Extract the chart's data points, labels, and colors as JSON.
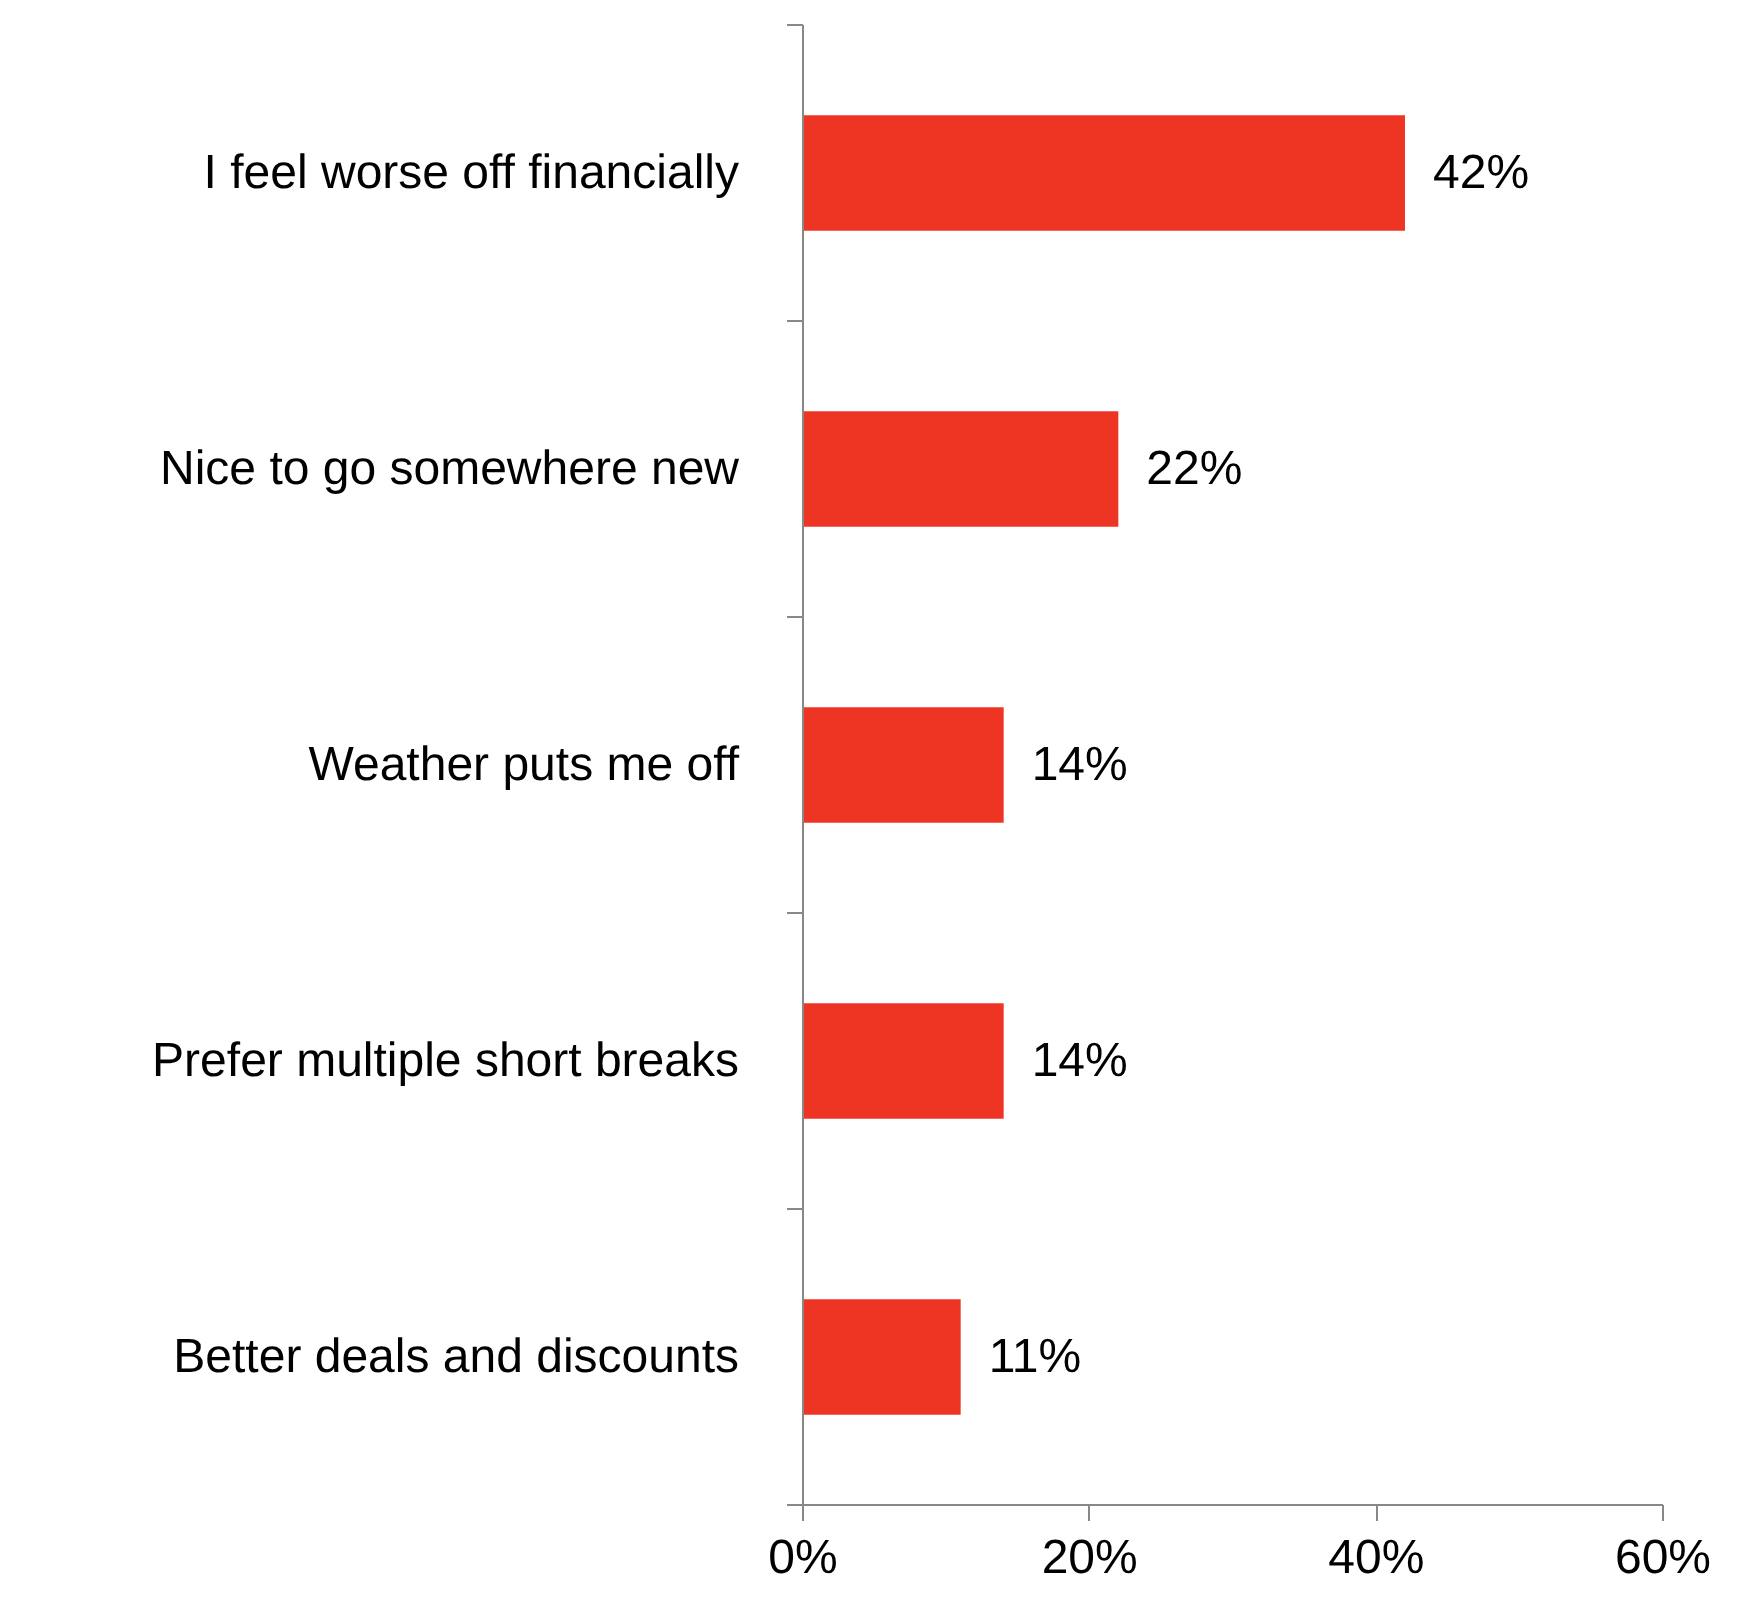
{
  "chart_data": {
    "type": "bar",
    "orientation": "horizontal",
    "categories": [
      "I feel worse off financially",
      "Nice to go somewhere new",
      "Weather puts me off",
      "Prefer multiple short breaks",
      "Better deals and discounts"
    ],
    "values": [
      42,
      22,
      14,
      14,
      11
    ],
    "value_labels": [
      "42%",
      "22%",
      "14%",
      "14%",
      "11%"
    ],
    "color": "#ee3524",
    "xlim": [
      0,
      60
    ],
    "xticks": [
      {
        "value": 0,
        "label": "0%"
      },
      {
        "value": 20,
        "label": "20%"
      },
      {
        "value": 40,
        "label": "40%"
      },
      {
        "value": 60,
        "label": "60%"
      }
    ],
    "grid": false
  }
}
